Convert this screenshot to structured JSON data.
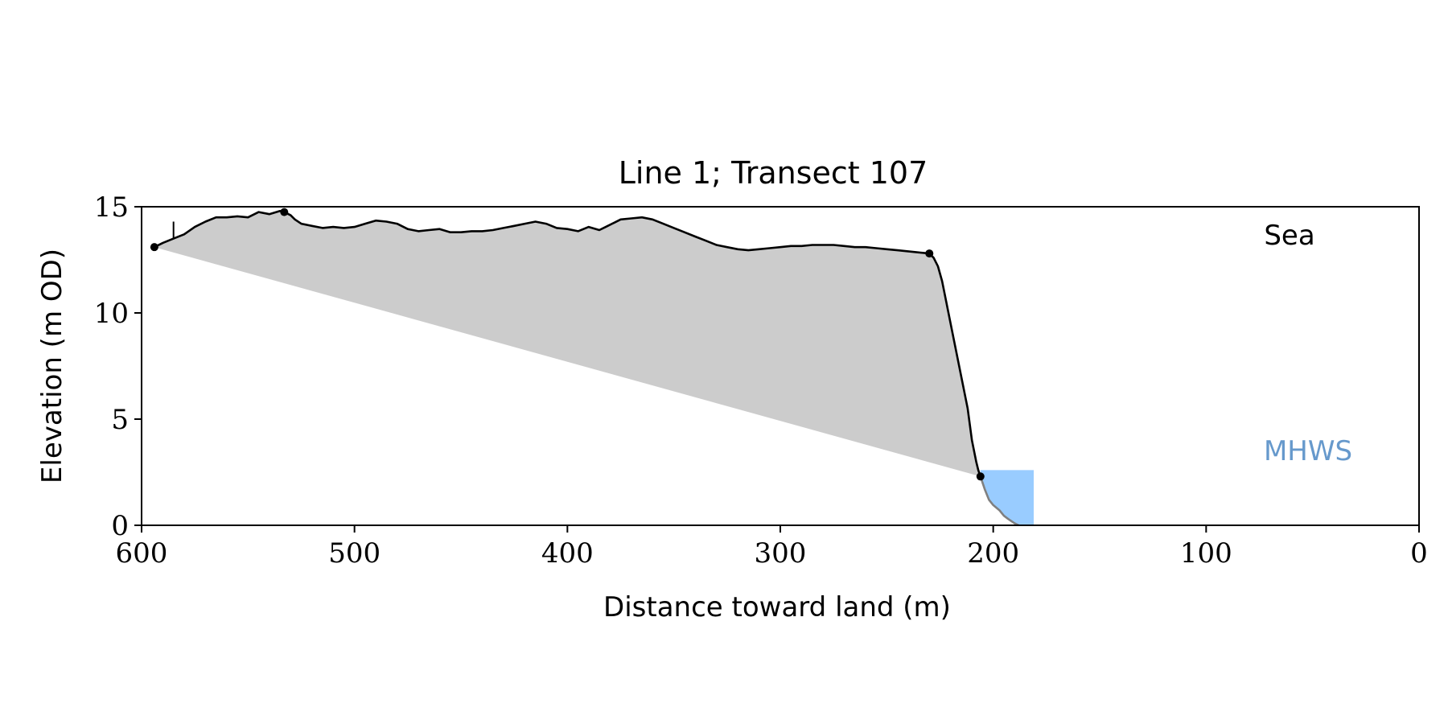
{
  "chart_data": {
    "type": "line",
    "title": "Line 1; Transect 107",
    "xlabel": "Distance toward land (m)",
    "ylabel": "Elevation (m OD)",
    "xlim": [
      600,
      0
    ],
    "ylim": [
      0,
      15
    ],
    "x_ticks": [
      600,
      500,
      400,
      300,
      200,
      100,
      0
    ],
    "y_ticks": [
      0,
      5,
      10,
      15
    ],
    "grid": false,
    "annotations": [
      {
        "text": "Sea",
        "color": "#000000"
      },
      {
        "text": "MHWS",
        "color": "#6699cc"
      }
    ],
    "colors": {
      "profile": "#000000",
      "below_mhws_profile": "#808080",
      "fill_area": "#cccccc",
      "mhws_fill": "#99ccff",
      "mhws_label": "#6699cc"
    },
    "profile": {
      "x": [
        594,
        590,
        585,
        580,
        575,
        570,
        565,
        560,
        555,
        550,
        545,
        540,
        535,
        533,
        530,
        528,
        525,
        520,
        515,
        510,
        505,
        500,
        495,
        490,
        485,
        480,
        475,
        470,
        465,
        460,
        455,
        450,
        445,
        440,
        435,
        430,
        425,
        420,
        415,
        410,
        405,
        400,
        395,
        390,
        385,
        382,
        378,
        375,
        370,
        365,
        360,
        355,
        350,
        345,
        340,
        335,
        330,
        325,
        320,
        315,
        310,
        305,
        300,
        295,
        290,
        285,
        280,
        275,
        270,
        265,
        260,
        255,
        250,
        245,
        240,
        235,
        230,
        228,
        226,
        224,
        222,
        220,
        218,
        216,
        214,
        212,
        210,
        208,
        207,
        206
      ],
      "y": [
        13.1,
        13.3,
        13.5,
        13.7,
        14.05,
        14.3,
        14.5,
        14.5,
        14.55,
        14.5,
        14.75,
        14.65,
        14.8,
        14.75,
        14.6,
        14.4,
        14.2,
        14.1,
        14.0,
        14.05,
        14.0,
        14.05,
        14.2,
        14.35,
        14.3,
        14.2,
        13.95,
        13.85,
        13.9,
        13.95,
        13.8,
        13.8,
        13.85,
        13.85,
        13.9,
        14.0,
        14.1,
        14.2,
        14.3,
        14.2,
        14.0,
        13.95,
        13.85,
        14.05,
        13.9,
        14.05,
        14.25,
        14.4,
        14.45,
        14.5,
        14.4,
        14.2,
        14.0,
        13.8,
        13.6,
        13.4,
        13.2,
        13.1,
        13.0,
        12.95,
        13.0,
        13.05,
        13.1,
        13.15,
        13.15,
        13.2,
        13.2,
        13.2,
        13.15,
        13.1,
        13.1,
        13.05,
        13.0,
        12.95,
        12.9,
        12.85,
        12.8,
        12.6,
        12.2,
        11.5,
        10.5,
        9.5,
        8.5,
        7.5,
        6.5,
        5.5,
        4.0,
        3.0,
        2.6,
        2.3
      ]
    },
    "below_mhws_profile": {
      "x": [
        206,
        204,
        202,
        200,
        197,
        195,
        193,
        190,
        188
      ],
      "y": [
        2.3,
        1.7,
        1.2,
        0.95,
        0.7,
        0.45,
        0.3,
        0.1,
        0.0
      ]
    },
    "markers": [
      {
        "x": 594,
        "y": 13.1
      },
      {
        "x": 533,
        "y": 14.75
      },
      {
        "x": 230,
        "y": 12.8
      },
      {
        "x": 206,
        "y": 2.3
      }
    ],
    "vertical_tick": {
      "x": 585,
      "y0": 13.5,
      "y1": 14.3
    },
    "mhws": {
      "level": 2.6,
      "x_from": 206,
      "x_to": 181
    }
  }
}
